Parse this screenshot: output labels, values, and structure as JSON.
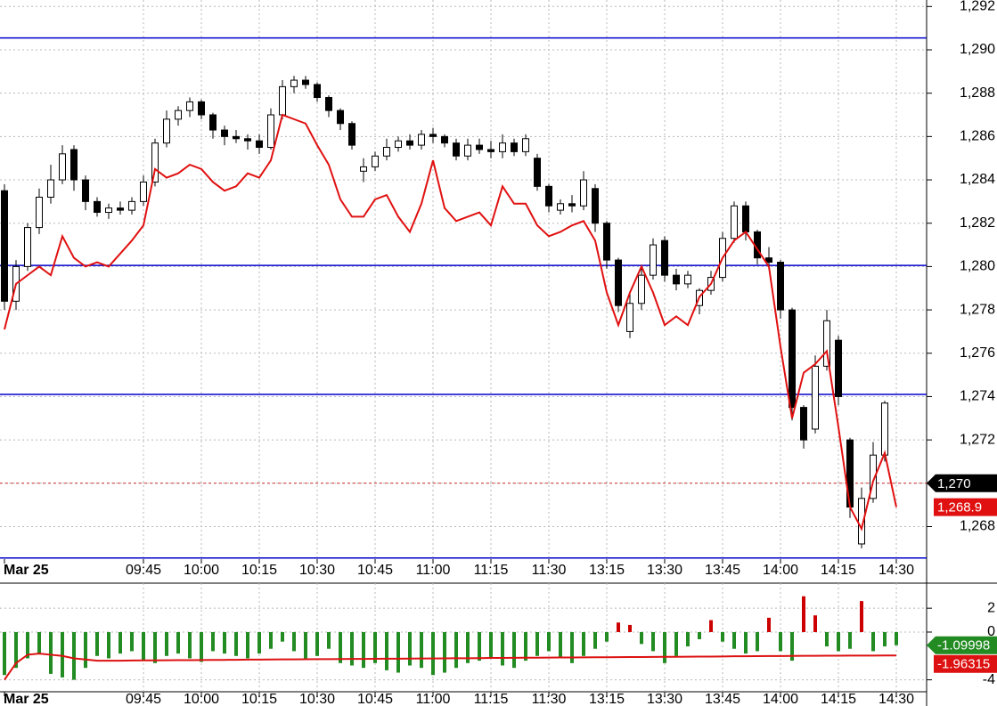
{
  "chart_data": [
    {
      "type": "candlestick",
      "categories": [
        "Mar 25",
        null,
        null,
        null,
        null,
        null,
        null,
        null,
        null,
        null,
        null,
        null,
        "09:45",
        null,
        null,
        null,
        null,
        "10:00",
        null,
        null,
        null,
        null,
        "10:15",
        null,
        null,
        null,
        null,
        "10:30",
        null,
        null,
        null,
        null,
        "10:45",
        null,
        null,
        null,
        null,
        "11:00",
        null,
        null,
        null,
        null,
        "11:15",
        null,
        null,
        null,
        null,
        "11:30",
        null,
        null,
        null,
        null,
        "13:15",
        null,
        null,
        null,
        null,
        "13:30",
        null,
        null,
        null,
        null,
        "13:45",
        null,
        null,
        null,
        null,
        "14:00",
        null,
        null,
        null,
        null,
        "14:15",
        null,
        null,
        null,
        null,
        "14:30"
      ],
      "open": [
        1283.5,
        1278.4,
        1280.0,
        1281.8,
        1283.2,
        1284.0,
        1285.4,
        1284.0,
        1283.0,
        1282.5,
        1282.7,
        1282.6,
        1283.0,
        1283.9,
        1285.7,
        1286.8,
        1287.2,
        1287.6,
        1287.0,
        1286.3,
        1286.0,
        1285.9,
        1285.8,
        1285.5,
        1287.0,
        1288.3,
        1288.6,
        1288.4,
        1287.8,
        1287.2,
        1286.6,
        1284.4,
        1284.6,
        1285.1,
        1285.5,
        1285.8,
        1285.6,
        1286.1,
        1286.0,
        1285.7,
        1285.1,
        1285.6,
        1285.4,
        1285.3,
        1285.7,
        1285.3,
        1285.0,
        1283.7,
        1282.6,
        1282.9,
        1282.8,
        1283.6,
        1282.0,
        1280.3,
        1277.0,
        1278.3,
        1279.6,
        1281.2,
        1279.6,
        1279.2,
        1278.2,
        1278.9,
        1279.5,
        1281.3,
        1282.8,
        1281.6,
        1280.4,
        1280.2,
        1278.0,
        1273.5,
        1272.5,
        1275.4,
        1276.6,
        1272.0,
        1267.2,
        1269.3,
        1271.3,
        null
      ],
      "high": [
        1283.8,
        1280.3,
        1282.0,
        1283.6,
        1284.7,
        1285.6,
        1285.6,
        1284.2,
        1283.2,
        1282.9,
        1283.0,
        1283.2,
        1284.2,
        1285.9,
        1287.2,
        1287.4,
        1287.8,
        1287.7,
        1287.1,
        1286.5,
        1286.3,
        1286.1,
        1286.1,
        1287.3,
        1288.6,
        1288.8,
        1288.8,
        1288.5,
        1287.9,
        1287.3,
        1286.7,
        1285.0,
        1285.3,
        1285.9,
        1286.0,
        1286.1,
        1286.3,
        1286.4,
        1286.1,
        1285.9,
        1285.9,
        1285.9,
        1285.8,
        1286.1,
        1285.9,
        1286.1,
        1285.2,
        1283.8,
        1283.1,
        1283.3,
        1284.4,
        1283.8,
        1282.1,
        1280.4,
        1278.8,
        1280.0,
        1281.3,
        1281.4,
        1279.9,
        1279.8,
        1279.0,
        1279.8,
        1281.6,
        1283.0,
        1283.0,
        1281.7,
        1280.9,
        1280.3,
        1278.1,
        1273.6,
        1275.9,
        1278.0,
        1276.8,
        1272.1,
        1269.8,
        1271.9,
        1273.8,
        null
      ],
      "low": [
        1278.0,
        1278.0,
        1279.8,
        1281.5,
        1282.9,
        1283.8,
        1283.5,
        1282.6,
        1282.3,
        1282.2,
        1282.4,
        1282.4,
        1282.8,
        1283.7,
        1285.5,
        1286.5,
        1286.9,
        1286.8,
        1285.9,
        1285.6,
        1285.7,
        1285.4,
        1285.2,
        1285.4,
        1286.8,
        1288.0,
        1288.2,
        1287.6,
        1286.9,
        1286.3,
        1285.4,
        1283.9,
        1284.4,
        1284.9,
        1285.3,
        1285.4,
        1285.4,
        1285.7,
        1285.5,
        1284.9,
        1284.9,
        1285.2,
        1285.0,
        1285.0,
        1285.1,
        1285.1,
        1283.5,
        1282.5,
        1282.4,
        1282.5,
        1282.6,
        1281.6,
        1279.9,
        1277.9,
        1276.7,
        1278.0,
        1279.4,
        1279.3,
        1278.9,
        1279.0,
        1277.8,
        1278.7,
        1279.3,
        1281.1,
        1281.2,
        1280.1,
        1279.9,
        1277.6,
        1272.9,
        1271.6,
        1272.3,
        1275.2,
        1273.6,
        1268.4,
        1267.0,
        1269.1,
        1271.0,
        null
      ],
      "close": [
        1278.4,
        1280.0,
        1281.8,
        1283.2,
        1284.0,
        1285.2,
        1284.0,
        1283.0,
        1282.5,
        1282.7,
        1282.6,
        1283.0,
        1283.9,
        1285.7,
        1286.8,
        1287.2,
        1287.6,
        1287.0,
        1286.3,
        1286.0,
        1285.9,
        1285.8,
        1285.5,
        1287.0,
        1288.3,
        1288.6,
        1288.4,
        1287.8,
        1287.2,
        1286.6,
        1285.6,
        1284.6,
        1285.1,
        1285.5,
        1285.8,
        1285.6,
        1286.1,
        1286.0,
        1285.7,
        1285.1,
        1285.6,
        1285.4,
        1285.3,
        1285.7,
        1285.3,
        1285.9,
        1283.7,
        1282.8,
        1282.9,
        1282.8,
        1284.0,
        1282.0,
        1280.3,
        1278.2,
        1278.3,
        1279.6,
        1281.0,
        1279.6,
        1279.2,
        1279.6,
        1278.9,
        1279.5,
        1281.3,
        1282.8,
        1281.6,
        1280.4,
        1280.2,
        1278.0,
        1273.5,
        1272.0,
        1275.4,
        1277.5,
        1274.0,
        1268.9,
        1269.3,
        1271.3,
        1273.7,
        null
      ],
      "up_color": "#ffffff",
      "down_color": "#000000",
      "line": {
        "color": "#e01010",
        "last_label": "1,268.9",
        "values": [
          1277.1,
          1279.2,
          1279.6,
          1280.0,
          1279.6,
          1281.4,
          1280.4,
          1280.0,
          1280.2,
          1280.0,
          1280.6,
          1281.2,
          1281.9,
          1284.5,
          1284.1,
          1284.3,
          1284.7,
          1284.5,
          1283.9,
          1283.5,
          1283.7,
          1284.3,
          1284.1,
          1284.9,
          1287.0,
          1286.8,
          1286.6,
          1285.6,
          1284.7,
          1283.1,
          1282.3,
          1282.3,
          1283.1,
          1283.3,
          1282.3,
          1281.6,
          1282.9,
          1284.9,
          1282.7,
          1282.1,
          1282.3,
          1282.5,
          1281.9,
          1283.7,
          1282.9,
          1282.9,
          1281.9,
          1281.4,
          1281.6,
          1281.9,
          1282.1,
          1281.2,
          1278.8,
          1277.3,
          1278.8,
          1280.0,
          1278.8,
          1277.3,
          1277.7,
          1277.3,
          1278.6,
          1279.2,
          1280.4,
          1281.2,
          1281.6,
          1280.8,
          1280.0,
          1276.3,
          1273.0,
          1275.1,
          1275.5,
          1276.1,
          1272.6,
          1268.9,
          1267.9,
          1270.1,
          1271.4,
          1268.9
        ]
      },
      "hlines": {
        "color": "#0000cc",
        "values": [
          1290.55,
          1280.05,
          1274.1,
          1266.55
        ]
      },
      "marker": {
        "value": 1270,
        "label": "1,270",
        "color": "#000000"
      },
      "ylim": [
        1266.5,
        1292.3
      ],
      "yticks": [
        {
          "value": 1268,
          "label": "1,268"
        },
        {
          "value": 1270,
          "label": "1,270"
        },
        {
          "value": 1272,
          "label": "1,272"
        },
        {
          "value": 1274,
          "label": "1,274"
        },
        {
          "value": 1276,
          "label": "1,276"
        },
        {
          "value": 1278,
          "label": "1,278"
        },
        {
          "value": 1280,
          "label": "1,280"
        },
        {
          "value": 1282,
          "label": "1,282"
        },
        {
          "value": 1284,
          "label": "1,284"
        },
        {
          "value": 1286,
          "label": "1,286"
        },
        {
          "value": 1288,
          "label": "1,288"
        },
        {
          "value": 1290,
          "label": "1,290"
        },
        {
          "value": 1292,
          "label": "1,292"
        }
      ],
      "grid": true
    },
    {
      "type": "bar",
      "categories": [
        "Mar 25",
        null,
        null,
        null,
        null,
        null,
        null,
        null,
        null,
        null,
        null,
        null,
        "09:45",
        null,
        null,
        null,
        null,
        "10:00",
        null,
        null,
        null,
        null,
        "10:15",
        null,
        null,
        null,
        null,
        "10:30",
        null,
        null,
        null,
        null,
        "10:45",
        null,
        null,
        null,
        null,
        "11:00",
        null,
        null,
        null,
        null,
        "11:15",
        null,
        null,
        null,
        null,
        "11:30",
        null,
        null,
        null,
        null,
        "13:15",
        null,
        null,
        null,
        null,
        "13:30",
        null,
        null,
        null,
        null,
        "13:45",
        null,
        null,
        null,
        null,
        "14:00",
        null,
        null,
        null,
        null,
        "14:15",
        null,
        null,
        null,
        null,
        "14:30"
      ],
      "values": [
        -3.6,
        -3.0,
        -2.2,
        -1.8,
        -3.5,
        -3.8,
        -4.0,
        -3.0,
        -2.0,
        -2.2,
        -1.8,
        -1.6,
        -2.4,
        -2.6,
        -2.0,
        -1.8,
        -2.2,
        -2.5,
        -1.6,
        -1.8,
        -2.0,
        -2.2,
        -1.8,
        -1.4,
        -0.8,
        -1.6,
        -2.2,
        -2.0,
        -1.4,
        -2.6,
        -2.8,
        -3.0,
        -2.6,
        -3.2,
        -3.4,
        -2.8,
        -3.0,
        -3.6,
        -3.4,
        -3.0,
        -2.6,
        -2.4,
        -2.2,
        -2.8,
        -3.0,
        -2.4,
        -2.0,
        -1.6,
        -2.2,
        -2.6,
        -2.0,
        -1.4,
        -0.8,
        0.8,
        0.6,
        -1.0,
        -1.6,
        -2.6,
        -2.0,
        -1.2,
        -0.6,
        1.0,
        -0.8,
        -1.4,
        -1.8,
        -1.6,
        1.2,
        -1.6,
        -2.4,
        3.0,
        1.4,
        -1.2,
        -1.6,
        -1.4,
        2.6,
        -1.6,
        -1.2,
        -1.09998
      ],
      "positive_color": "#cc0000",
      "negative_color": "#228b22",
      "line": {
        "color": "#dd1111",
        "values": [
          -4.0,
          -2.6,
          -1.9,
          -1.8,
          -1.9,
          -2.0,
          -2.2,
          -2.3,
          -2.4,
          -2.4,
          -2.4,
          -2.38,
          -2.37,
          -2.37,
          -2.36,
          -2.35,
          -2.35,
          -2.34,
          -2.33,
          -2.33,
          -2.32,
          -2.31,
          -2.31,
          -2.3,
          -2.29,
          -2.29,
          -2.28,
          -2.27,
          -2.27,
          -2.26,
          -2.25,
          -2.25,
          -2.24,
          -2.23,
          -2.23,
          -2.22,
          -2.21,
          -2.21,
          -2.2,
          -2.19,
          -2.19,
          -2.18,
          -2.17,
          -2.17,
          -2.16,
          -2.15,
          -2.15,
          -2.14,
          -2.13,
          -2.13,
          -2.12,
          -2.11,
          -2.11,
          -2.1,
          -2.09,
          -2.09,
          -2.08,
          -2.07,
          -2.07,
          -2.06,
          -2.05,
          -2.05,
          -2.04,
          -2.03,
          -2.03,
          -2.02,
          -2.01,
          -2.01,
          -2.0,
          -1.99,
          -1.99,
          -1.98,
          -1.98,
          -1.97,
          -1.97,
          -1.97,
          -1.96,
          -1.96315
        ]
      },
      "ylim": [
        -5,
        4.1
      ],
      "yticks": [
        -4,
        0,
        2
      ],
      "grid": true
    }
  ]
}
